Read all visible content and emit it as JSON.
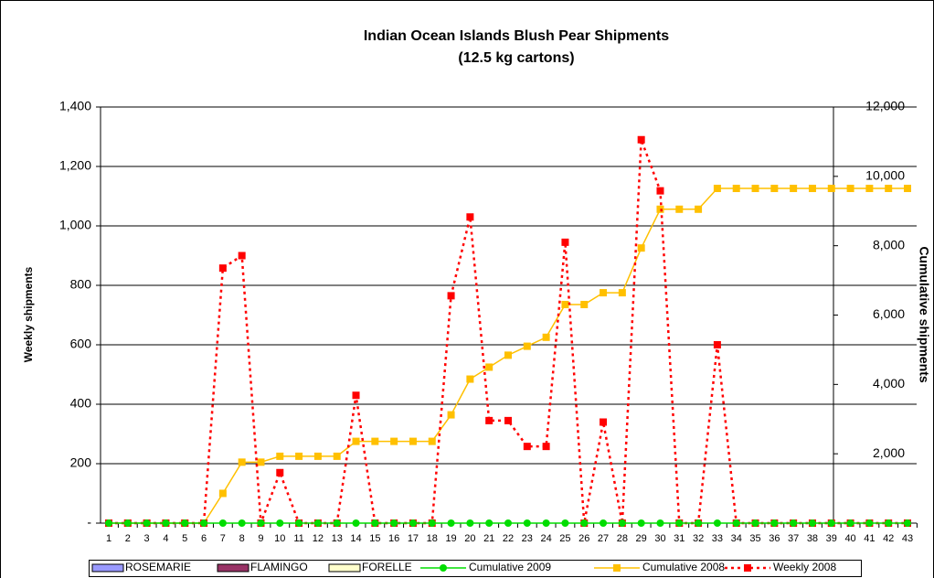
{
  "chart_data": {
    "type": "combo",
    "title": "Indian Ocean Islands Blush Pear Shipments",
    "subtitle": "(12.5 kg cartons)",
    "ylabel": "Weekly shipments",
    "y2label": "Cumulative shipments",
    "categories": [
      "1",
      "2",
      "3",
      "4",
      "5",
      "6",
      "7",
      "8",
      "9",
      "10",
      "11",
      "12",
      "13",
      "14",
      "15",
      "16",
      "17",
      "18",
      "19",
      "20",
      "21",
      "22",
      "23",
      "24",
      "25",
      "26",
      "27",
      "28",
      "29",
      "30",
      "31",
      "32",
      "33",
      "34",
      "35",
      "36",
      "37",
      "38",
      "39",
      "40",
      "41",
      "42",
      "43"
    ],
    "ylim": [
      0,
      1400
    ],
    "yticks": [
      {
        "value": 0,
        "label": "-"
      },
      {
        "value": 200,
        "label": "200"
      },
      {
        "value": 400,
        "label": "400"
      },
      {
        "value": 600,
        "label": "600"
      },
      {
        "value": 800,
        "label": "800"
      },
      {
        "value": 1000,
        "label": "1,000"
      },
      {
        "value": 1200,
        "label": "1,200"
      },
      {
        "value": 1400,
        "label": "1,400"
      }
    ],
    "y2lim": [
      0,
      12000
    ],
    "y2ticks": [
      {
        "value": 0,
        "label": "-"
      },
      {
        "value": 2000,
        "label": "2,000"
      },
      {
        "value": 4000,
        "label": "4,000"
      },
      {
        "value": 6000,
        "label": "6,000"
      },
      {
        "value": 8000,
        "label": "8,000"
      },
      {
        "value": 10000,
        "label": "10,000"
      },
      {
        "value": 12000,
        "label": "12,000"
      }
    ],
    "grid": true,
    "series": [
      {
        "name": "ROSEMARIE",
        "type": "bar",
        "color": "#9999ff",
        "values": [
          0,
          0,
          0,
          0,
          0,
          0,
          0,
          0,
          0,
          0,
          0,
          0,
          0,
          0,
          0,
          0,
          0,
          0,
          0,
          0,
          0,
          0,
          0,
          0,
          0,
          0,
          0,
          0,
          0,
          0,
          0,
          0,
          0,
          0,
          0,
          0,
          0,
          0,
          0,
          0,
          0,
          0,
          0
        ]
      },
      {
        "name": "FLAMINGO",
        "type": "bar",
        "color": "#993366",
        "values": [
          0,
          0,
          0,
          0,
          0,
          0,
          0,
          0,
          0,
          0,
          0,
          0,
          0,
          0,
          0,
          0,
          0,
          0,
          0,
          0,
          0,
          0,
          0,
          0,
          0,
          0,
          0,
          0,
          0,
          0,
          0,
          0,
          0,
          0,
          0,
          0,
          0,
          0,
          0,
          0,
          0,
          0,
          0
        ]
      },
      {
        "name": "FORELLE",
        "type": "bar",
        "color": "#ffffcc",
        "values": [
          0,
          0,
          0,
          0,
          0,
          0,
          0,
          0,
          0,
          0,
          0,
          0,
          0,
          0,
          0,
          0,
          0,
          0,
          0,
          0,
          0,
          0,
          0,
          0,
          0,
          0,
          0,
          0,
          0,
          0,
          0,
          0,
          0,
          0,
          0,
          0,
          0,
          0,
          0,
          0,
          0,
          0,
          0
        ]
      },
      {
        "name": "Cumulative 2009",
        "type": "line",
        "axis": "y2",
        "color": "#00dd00",
        "marker": "circle",
        "values": [
          0,
          0,
          0,
          0,
          0,
          0,
          0,
          0,
          0,
          0,
          0,
          0,
          0,
          0,
          0,
          0,
          0,
          0,
          0,
          0,
          0,
          0,
          0,
          0,
          0,
          0,
          0,
          0,
          0,
          0,
          0,
          0,
          0,
          0,
          0,
          0,
          0,
          0,
          0,
          0,
          0,
          0,
          0
        ]
      },
      {
        "name": "Cumulative 2008",
        "type": "line",
        "axis": "y2",
        "color": "#ffc000",
        "marker": "square",
        "values": [
          0,
          0,
          0,
          0,
          0,
          0,
          858,
          1758,
          1758,
          1928,
          1928,
          1928,
          1928,
          2358,
          2358,
          2358,
          2358,
          2358,
          3123,
          4153,
          4498,
          4843,
          5101,
          5359,
          6304,
          6304,
          6644,
          6644,
          7934,
          9052,
          9052,
          9052,
          9652,
          9652,
          9652,
          9652,
          9652,
          9652,
          9652,
          9652,
          9652,
          9652,
          9652
        ]
      },
      {
        "name": "Weekly 2008",
        "type": "line",
        "color": "#ff0000",
        "marker": "square",
        "dash": true,
        "values": [
          0,
          0,
          0,
          0,
          0,
          0,
          858,
          900,
          0,
          170,
          0,
          0,
          0,
          430,
          0,
          0,
          0,
          0,
          765,
          1030,
          345,
          345,
          258,
          258,
          945,
          0,
          340,
          0,
          1290,
          1118,
          0,
          0,
          600,
          0,
          0,
          0,
          0,
          0,
          0,
          0,
          0,
          0,
          0
        ]
      }
    ]
  }
}
